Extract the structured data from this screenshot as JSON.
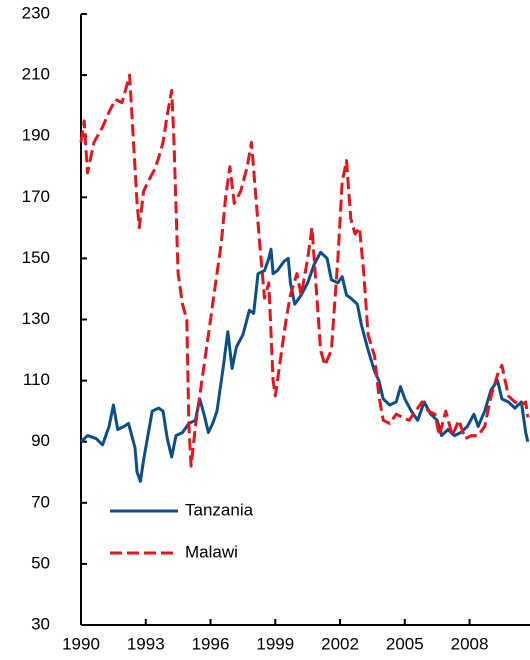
{
  "chart_data": {
    "type": "line",
    "xlim": [
      1990,
      2010.8
    ],
    "xticks": [
      1990,
      1993,
      1996,
      1999,
      2002,
      2005,
      2008
    ],
    "ylim": [
      30,
      230
    ],
    "yticks": [
      30,
      50,
      70,
      90,
      110,
      130,
      150,
      170,
      190,
      210,
      230
    ],
    "legend": "lower left",
    "series": [
      {
        "name": "Tanzania",
        "color": "#0b4f8a",
        "dash": "solid",
        "x": [
          1990.0,
          1990.3,
          1990.7,
          1991.0,
          1991.3,
          1991.5,
          1991.7,
          1992.0,
          1992.2,
          1992.5,
          1992.6,
          1992.75,
          1992.9,
          1993.1,
          1993.3,
          1993.6,
          1993.8,
          1994.0,
          1994.2,
          1994.4,
          1994.7,
          1995.0,
          1995.3,
          1995.5,
          1995.7,
          1995.9,
          1996.1,
          1996.3,
          1996.6,
          1996.8,
          1997.0,
          1997.2,
          1997.5,
          1997.8,
          1998.0,
          1998.2,
          1998.5,
          1998.7,
          1998.8,
          1998.9,
          1999.1,
          1999.4,
          1999.6,
          1999.7,
          1999.9,
          2000.2,
          2000.5,
          2000.8,
          2001.1,
          2001.4,
          2001.6,
          2001.9,
          2002.1,
          2002.3,
          2002.5,
          2002.8,
          2003.0,
          2003.3,
          2003.6,
          2003.8,
          2004.0,
          2004.3,
          2004.6,
          2004.8,
          2005.0,
          2005.3,
          2005.6,
          2005.9,
          2006.2,
          2006.5,
          2006.7,
          2007.0,
          2007.3,
          2007.6,
          2007.9,
          2008.2,
          2008.4,
          2008.7,
          2009.0,
          2009.3,
          2009.5,
          2009.8,
          2010.1,
          2010.4,
          2010.6,
          2010.7
        ],
        "values": [
          90,
          92,
          91,
          89,
          95,
          102,
          94,
          95,
          96,
          88,
          80,
          77,
          84,
          92,
          100,
          101,
          100,
          91,
          85,
          92,
          93,
          96,
          97,
          104,
          99,
          93,
          96,
          100,
          115,
          126,
          114,
          121,
          125,
          133,
          132,
          145,
          146,
          150,
          153,
          145,
          146,
          149,
          150,
          142,
          135,
          138,
          142,
          148,
          152,
          150,
          143,
          142,
          144,
          138,
          137,
          135,
          128,
          120,
          113,
          110,
          104,
          102,
          103,
          108,
          104,
          100,
          97,
          103,
          99,
          97,
          92,
          94,
          92,
          93,
          95,
          99,
          95,
          100,
          107,
          110,
          104,
          103,
          101,
          103,
          93,
          90
        ]
      },
      {
        "name": "Malawi",
        "color": "#e8141b",
        "dash": "dashed",
        "x": [
          1990.0,
          1990.15,
          1990.3,
          1990.6,
          1991.0,
          1991.3,
          1991.6,
          1991.9,
          1992.1,
          1992.25,
          1992.4,
          1992.6,
          1992.7,
          1992.9,
          1993.1,
          1993.4,
          1993.6,
          1993.8,
          1994.0,
          1994.2,
          1994.3,
          1994.5,
          1994.7,
          1994.9,
          1995.0,
          1995.1,
          1995.3,
          1995.6,
          1995.9,
          1996.2,
          1996.5,
          1996.7,
          1996.9,
          1997.1,
          1997.4,
          1997.7,
          1997.9,
          1998.1,
          1998.3,
          1998.5,
          1998.7,
          1998.9,
          1999.0,
          1999.2,
          1999.5,
          1999.7,
          2000.0,
          2000.2,
          2000.5,
          2000.7,
          2000.9,
          2001.1,
          2001.3,
          2001.6,
          2001.9,
          2002.1,
          2002.3,
          2002.5,
          2002.7,
          2002.9,
          2003.1,
          2003.3,
          2003.6,
          2003.8,
          2004.0,
          2004.3,
          2004.6,
          2004.9,
          2005.2,
          2005.5,
          2005.8,
          2006.1,
          2006.4,
          2006.6,
          2006.9,
          2007.2,
          2007.5,
          2007.8,
          2008.1,
          2008.4,
          2008.7,
          2009.0,
          2009.3,
          2009.5,
          2009.8,
          2010.1,
          2010.4,
          2010.6,
          2010.7
        ],
        "values": [
          188,
          195,
          178,
          188,
          193,
          198,
          202,
          201,
          206,
          210,
          192,
          168,
          160,
          172,
          175,
          179,
          183,
          188,
          197,
          205,
          190,
          145,
          135,
          130,
          95,
          82,
          95,
          110,
          125,
          140,
          155,
          170,
          180,
          168,
          172,
          180,
          188,
          170,
          153,
          137,
          142,
          110,
          105,
          115,
          130,
          138,
          145,
          138,
          150,
          160,
          140,
          120,
          115,
          120,
          150,
          175,
          182,
          163,
          158,
          160,
          145,
          125,
          118,
          105,
          97,
          96,
          99,
          98,
          97,
          100,
          103,
          100,
          99,
          92,
          100,
          92,
          97,
          91,
          92,
          92,
          95,
          105,
          112,
          115,
          105,
          103,
          102,
          103,
          98
        ]
      }
    ]
  }
}
